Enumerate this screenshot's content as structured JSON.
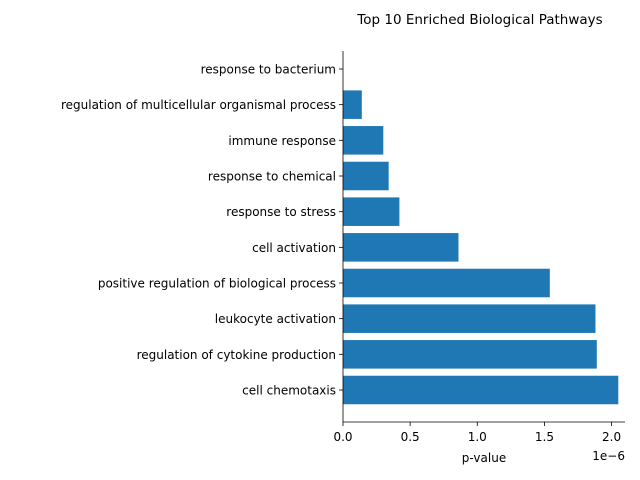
{
  "chart_data": {
    "type": "bar",
    "orientation": "horizontal",
    "title": "Top 10 Enriched Biological Pathways",
    "xlabel": "p-value",
    "ylabel": "",
    "x_scale_note": "1e−6",
    "x_ticks": [
      0.0,
      0.5,
      1.0,
      1.5,
      2.0
    ],
    "x_tick_labels": [
      "0.0",
      "0.5",
      "1.0",
      "1.5",
      "2.0"
    ],
    "xlim": [
      0,
      2.1
    ],
    "grid": false,
    "color": "#1f77b4",
    "categories": [
      "response to bacterium",
      "regulation of multicellular organismal process",
      "immune response",
      "response to chemical",
      "response to stress",
      "cell activation",
      "positive regulation of biological process",
      "leukocyte activation",
      "regulation of cytokine production",
      "cell chemotaxis"
    ],
    "values": [
      0.0,
      0.14,
      0.3,
      0.34,
      0.42,
      0.86,
      1.54,
      1.88,
      1.89,
      2.05
    ]
  }
}
